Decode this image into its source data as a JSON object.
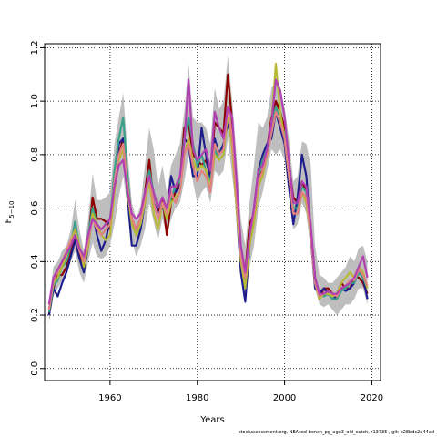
{
  "chart_data": {
    "type": "line",
    "title": "",
    "xlabel": "Years",
    "ylabel": "F",
    "ylabel_subscript": "5−10",
    "xlim": [
      1945,
      2022
    ],
    "ylim": [
      0,
      1.2
    ],
    "x_ticks": [
      1960,
      1980,
      2000,
      2020
    ],
    "y_ticks": [
      0.0,
      0.2,
      0.4,
      0.6,
      0.8,
      1.0,
      1.2
    ],
    "x_tick_labels": [
      "1960",
      "1980",
      "2000",
      "2020"
    ],
    "y_tick_labels": [
      "0.0",
      "0.2",
      "0.4",
      "0.6",
      "0.8",
      "1.0",
      "1.2"
    ],
    "grid": "dotted",
    "legend": "none",
    "confidence_band_color": "#bebebe",
    "x": [
      1946,
      1947,
      1948,
      1949,
      1950,
      1951,
      1952,
      1953,
      1954,
      1955,
      1956,
      1957,
      1958,
      1959,
      1960,
      1961,
      1962,
      1963,
      1964,
      1965,
      1966,
      1967,
      1968,
      1969,
      1970,
      1971,
      1972,
      1973,
      1974,
      1975,
      1976,
      1977,
      1978,
      1979,
      1980,
      1981,
      1982,
      1983,
      1984,
      1985,
      1986,
      1987,
      1988,
      1989,
      1990,
      1991,
      1992,
      1993,
      1994,
      1995,
      1996,
      1997,
      1998,
      1999,
      2000,
      2001,
      2002,
      2003,
      2004,
      2005,
      2006,
      2007,
      2008,
      2009,
      2010,
      2011,
      2012,
      2013,
      2014,
      2015,
      2016,
      2017,
      2018,
      2019
    ],
    "band_lower": [
      0.17,
      0.27,
      0.3,
      0.33,
      0.35,
      0.4,
      0.44,
      0.36,
      0.32,
      0.4,
      0.47,
      0.42,
      0.41,
      0.42,
      0.46,
      0.54,
      0.64,
      0.72,
      0.6,
      0.48,
      0.42,
      0.46,
      0.52,
      0.62,
      0.55,
      0.48,
      0.56,
      0.5,
      0.56,
      0.6,
      0.62,
      0.7,
      0.8,
      0.7,
      0.62,
      0.66,
      0.68,
      0.62,
      0.74,
      0.72,
      0.74,
      0.86,
      0.72,
      0.58,
      0.36,
      0.24,
      0.38,
      0.46,
      0.6,
      0.66,
      0.74,
      0.82,
      0.8,
      0.82,
      0.78,
      0.64,
      0.52,
      0.54,
      0.62,
      0.58,
      0.44,
      0.3,
      0.24,
      0.23,
      0.24,
      0.22,
      0.2,
      0.22,
      0.24,
      0.24,
      0.26,
      0.3,
      0.3,
      0.24
    ],
    "band_upper": [
      0.24,
      0.38,
      0.4,
      0.44,
      0.46,
      0.52,
      0.63,
      0.52,
      0.44,
      0.56,
      0.73,
      0.63,
      0.63,
      0.64,
      0.66,
      0.84,
      0.94,
      1.03,
      0.81,
      0.62,
      0.56,
      0.61,
      0.76,
      0.9,
      0.82,
      0.68,
      0.76,
      0.66,
      0.76,
      0.8,
      0.84,
      0.96,
      1.14,
      0.94,
      0.92,
      0.92,
      0.9,
      0.84,
      1.05,
      0.97,
      1.0,
      1.17,
      1.0,
      0.79,
      0.56,
      0.46,
      0.62,
      0.76,
      0.92,
      0.9,
      0.94,
      1.05,
      1.07,
      1.03,
      0.98,
      0.86,
      0.7,
      0.72,
      0.85,
      0.84,
      0.76,
      0.46,
      0.35,
      0.34,
      0.32,
      0.32,
      0.34,
      0.36,
      0.38,
      0.42,
      0.4,
      0.45,
      0.46,
      0.4
    ],
    "series": [
      {
        "color": "#8b0000",
        "values": [
          0.2,
          0.3,
          0.35,
          0.35,
          0.38,
          0.44,
          0.49,
          0.42,
          0.39,
          0.48,
          0.64,
          0.56,
          0.56,
          0.55,
          0.52,
          0.68,
          0.8,
          0.86,
          0.7,
          0.56,
          0.52,
          0.56,
          0.66,
          0.78,
          0.62,
          0.58,
          0.64,
          0.5,
          0.62,
          0.66,
          0.7,
          0.9,
          0.92,
          0.8,
          0.78,
          0.76,
          0.78,
          0.72,
          0.92,
          0.9,
          0.88,
          1.1,
          0.92,
          0.66,
          0.44,
          0.36,
          0.54,
          0.58,
          0.72,
          0.74,
          0.82,
          0.94,
          1.0,
          0.96,
          0.9,
          0.76,
          0.64,
          0.62,
          0.7,
          0.66,
          0.52,
          0.34,
          0.26,
          0.3,
          0.3,
          0.28,
          0.28,
          0.32,
          0.3,
          0.3,
          0.34,
          0.34,
          0.32,
          0.28
        ]
      },
      {
        "color": "#1e1e8c",
        "values": [
          0.2,
          0.3,
          0.27,
          0.32,
          0.36,
          0.42,
          0.48,
          0.41,
          0.36,
          0.46,
          0.58,
          0.5,
          0.44,
          0.48,
          0.56,
          0.7,
          0.84,
          0.86,
          0.64,
          0.46,
          0.46,
          0.52,
          0.62,
          0.72,
          0.62,
          0.58,
          0.6,
          0.58,
          0.72,
          0.66,
          0.68,
          0.86,
          0.84,
          0.72,
          0.72,
          0.9,
          0.8,
          0.7,
          0.86,
          0.8,
          0.84,
          0.92,
          0.84,
          0.6,
          0.36,
          0.25,
          0.46,
          0.6,
          0.74,
          0.8,
          0.84,
          0.86,
          0.96,
          0.9,
          0.84,
          0.68,
          0.54,
          0.64,
          0.8,
          0.72,
          0.5,
          0.3,
          0.28,
          0.3,
          0.28,
          0.26,
          0.27,
          0.3,
          0.29,
          0.3,
          0.32,
          0.36,
          0.34,
          0.26
        ]
      },
      {
        "color": "#3aa08a",
        "values": [
          0.21,
          0.31,
          0.33,
          0.38,
          0.4,
          0.46,
          0.55,
          0.45,
          0.4,
          0.5,
          0.6,
          0.54,
          0.5,
          0.52,
          0.54,
          0.74,
          0.86,
          0.94,
          0.72,
          0.54,
          0.5,
          0.54,
          0.64,
          0.74,
          0.66,
          0.6,
          0.62,
          0.56,
          0.64,
          0.68,
          0.7,
          0.86,
          0.94,
          0.84,
          0.76,
          0.8,
          0.74,
          0.7,
          0.82,
          0.78,
          0.8,
          0.96,
          0.84,
          0.62,
          0.44,
          0.32,
          0.48,
          0.56,
          0.72,
          0.78,
          0.82,
          0.9,
          0.98,
          0.92,
          0.88,
          0.74,
          0.6,
          0.6,
          0.68,
          0.66,
          0.52,
          0.34,
          0.28,
          0.27,
          0.28,
          0.26,
          0.26,
          0.29,
          0.3,
          0.32,
          0.32,
          0.36,
          0.34,
          0.3
        ]
      },
      {
        "color": "#b8b838",
        "values": [
          0.22,
          0.32,
          0.34,
          0.38,
          0.42,
          0.48,
          0.52,
          0.46,
          0.38,
          0.46,
          0.58,
          0.54,
          0.5,
          0.48,
          0.5,
          0.66,
          0.78,
          0.82,
          0.66,
          0.54,
          0.5,
          0.54,
          0.62,
          0.7,
          0.58,
          0.52,
          0.62,
          0.56,
          0.62,
          0.64,
          0.66,
          0.8,
          0.86,
          0.78,
          0.74,
          0.76,
          0.74,
          0.68,
          0.8,
          0.78,
          0.8,
          0.96,
          0.82,
          0.6,
          0.4,
          0.3,
          0.46,
          0.54,
          0.68,
          0.72,
          0.8,
          0.92,
          1.14,
          0.96,
          0.86,
          0.72,
          0.58,
          0.58,
          0.66,
          0.62,
          0.5,
          0.32,
          0.26,
          0.28,
          0.28,
          0.27,
          0.28,
          0.32,
          0.34,
          0.36,
          0.34,
          0.38,
          0.36,
          0.3
        ]
      },
      {
        "color": "#e08080",
        "values": [
          0.22,
          0.33,
          0.36,
          0.4,
          0.44,
          0.48,
          0.5,
          0.44,
          0.4,
          0.48,
          0.56,
          0.52,
          0.5,
          0.52,
          0.54,
          0.7,
          0.8,
          0.84,
          0.68,
          0.56,
          0.52,
          0.56,
          0.64,
          0.72,
          0.62,
          0.56,
          0.62,
          0.58,
          0.66,
          0.62,
          0.66,
          0.8,
          0.84,
          0.76,
          0.7,
          0.74,
          0.72,
          0.66,
          0.84,
          0.8,
          0.82,
          0.98,
          0.86,
          0.64,
          0.42,
          0.34,
          0.5,
          0.58,
          0.7,
          0.74,
          0.8,
          0.88,
          0.96,
          0.92,
          0.86,
          0.72,
          0.58,
          0.58,
          0.66,
          0.64,
          0.5,
          0.32,
          0.27,
          0.28,
          0.29,
          0.28,
          0.27,
          0.3,
          0.31,
          0.33,
          0.33,
          0.37,
          0.35,
          0.31
        ]
      },
      {
        "color": "#b040b0",
        "values": [
          0.24,
          0.34,
          0.37,
          0.4,
          0.43,
          0.46,
          0.5,
          0.45,
          0.42,
          0.5,
          0.56,
          0.54,
          0.52,
          0.54,
          0.56,
          0.68,
          0.76,
          0.78,
          0.66,
          0.58,
          0.56,
          0.58,
          0.66,
          0.72,
          0.66,
          0.6,
          0.64,
          0.6,
          0.68,
          0.68,
          0.72,
          0.84,
          1.08,
          0.82,
          0.78,
          0.8,
          0.82,
          0.74,
          0.96,
          0.9,
          0.86,
          0.98,
          0.94,
          0.7,
          0.46,
          0.36,
          0.5,
          0.6,
          0.74,
          0.76,
          0.82,
          0.92,
          1.08,
          1.04,
          0.94,
          0.78,
          0.62,
          0.62,
          0.7,
          0.68,
          0.54,
          0.34,
          0.28,
          0.28,
          0.29,
          0.28,
          0.28,
          0.3,
          0.31,
          0.32,
          0.34,
          0.38,
          0.42,
          0.34
        ]
      }
    ]
  },
  "footer_note": "stockassessment.org, NEAcod-bench_pg_age3_old_catch, r13735 , git: c28bdc2a44ad"
}
